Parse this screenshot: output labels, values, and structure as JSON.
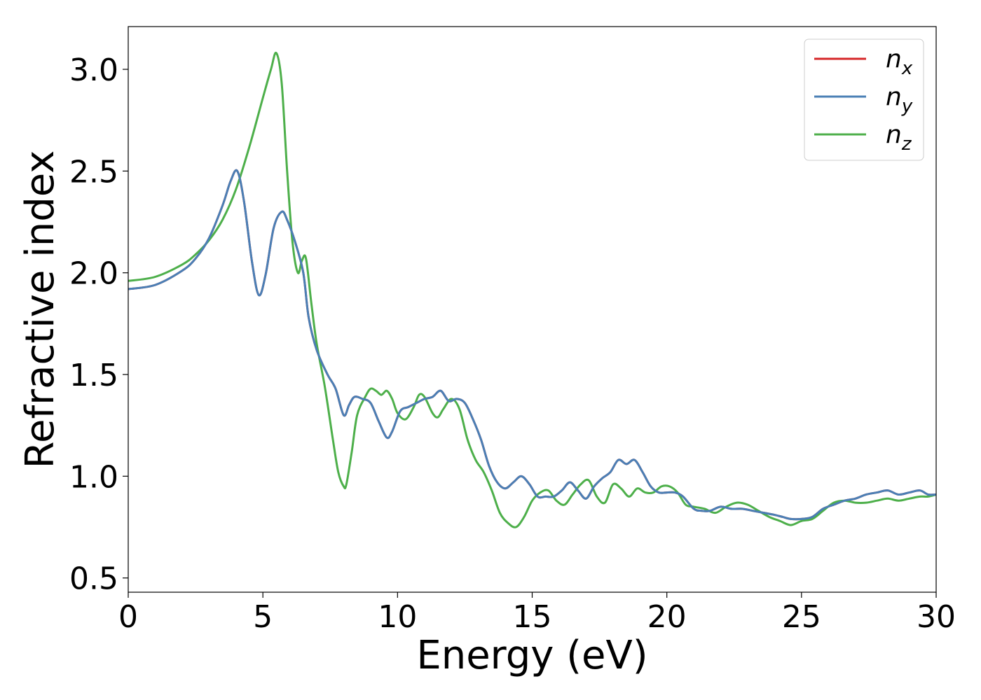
{
  "chart_data": {
    "type": "line",
    "title": "",
    "xlabel": "Energy (eV)",
    "ylabel": "Refractive index",
    "xlim": [
      0,
      30
    ],
    "ylim": [
      0.43,
      3.21
    ],
    "xticks": [
      0,
      5,
      10,
      15,
      20,
      25,
      30
    ],
    "xtick_labels": [
      "0",
      "5",
      "10",
      "15",
      "20",
      "25",
      "30"
    ],
    "yticks": [
      0.5,
      1.0,
      1.5,
      2.0,
      2.5,
      3.0
    ],
    "ytick_labels": [
      "0.5",
      "1.0",
      "1.5",
      "2.0",
      "2.5",
      "3.0"
    ],
    "grid": false,
    "legend_position": "top-right",
    "series": [
      {
        "name": "n_x",
        "label_base": "n",
        "label_sub": "x",
        "color": "#d62728",
        "x": [
          0,
          1,
          2,
          2.5,
          3,
          3.5,
          3.8,
          4.05,
          4.3,
          4.6,
          4.85,
          5.1,
          5.4,
          5.7,
          5.9,
          6.2,
          6.5,
          6.7,
          7.0,
          7.4,
          7.7,
          8.0,
          8.2,
          8.4,
          8.7,
          9.0,
          9.3,
          9.6,
          9.8,
          10.1,
          10.4,
          10.7,
          11.0,
          11.3,
          11.6,
          11.9,
          12.2,
          12.5,
          12.8,
          13.1,
          13.4,
          13.7,
          14.0,
          14.3,
          14.6,
          14.9,
          15.2,
          15.5,
          15.8,
          16.1,
          16.4,
          16.7,
          17.0,
          17.3,
          17.6,
          17.9,
          18.2,
          18.5,
          18.8,
          19.1,
          19.4,
          19.7,
          20.0,
          20.3,
          20.6,
          21.0,
          21.3,
          21.6,
          22.0,
          22.4,
          22.8,
          23.2,
          23.6,
          24.0,
          24.3,
          24.6,
          25.0,
          25.4,
          25.8,
          26.2,
          26.6,
          27.0,
          27.4,
          27.8,
          28.2,
          28.6,
          29.0,
          29.4,
          29.7,
          30.0
        ],
        "y": [
          1.92,
          1.94,
          2.01,
          2.07,
          2.17,
          2.33,
          2.45,
          2.5,
          2.35,
          2.05,
          1.89,
          1.99,
          2.22,
          2.3,
          2.26,
          2.15,
          2.0,
          1.78,
          1.62,
          1.5,
          1.43,
          1.3,
          1.35,
          1.39,
          1.38,
          1.36,
          1.27,
          1.19,
          1.22,
          1.32,
          1.34,
          1.36,
          1.38,
          1.39,
          1.42,
          1.37,
          1.38,
          1.36,
          1.28,
          1.18,
          1.05,
          0.97,
          0.94,
          0.97,
          1.0,
          0.96,
          0.9,
          0.9,
          0.9,
          0.93,
          0.97,
          0.93,
          0.89,
          0.95,
          0.99,
          1.02,
          1.08,
          1.06,
          1.08,
          1.02,
          0.95,
          0.92,
          0.92,
          0.92,
          0.9,
          0.84,
          0.83,
          0.83,
          0.85,
          0.84,
          0.84,
          0.83,
          0.82,
          0.81,
          0.8,
          0.79,
          0.79,
          0.8,
          0.84,
          0.86,
          0.88,
          0.89,
          0.91,
          0.92,
          0.93,
          0.91,
          0.92,
          0.93,
          0.91,
          0.91
        ]
      },
      {
        "name": "n_y",
        "label_base": "n",
        "label_sub": "y",
        "color": "#4a7fb5",
        "x": [
          0,
          1,
          2,
          2.5,
          3,
          3.5,
          3.8,
          4.05,
          4.3,
          4.6,
          4.85,
          5.1,
          5.4,
          5.7,
          5.9,
          6.2,
          6.5,
          6.7,
          7.0,
          7.4,
          7.7,
          8.0,
          8.2,
          8.4,
          8.7,
          9.0,
          9.3,
          9.6,
          9.8,
          10.1,
          10.4,
          10.7,
          11.0,
          11.3,
          11.6,
          11.9,
          12.2,
          12.5,
          12.8,
          13.1,
          13.4,
          13.7,
          14.0,
          14.3,
          14.6,
          14.9,
          15.2,
          15.5,
          15.8,
          16.1,
          16.4,
          16.7,
          17.0,
          17.3,
          17.6,
          17.9,
          18.2,
          18.5,
          18.8,
          19.1,
          19.4,
          19.7,
          20.0,
          20.3,
          20.6,
          21.0,
          21.3,
          21.6,
          22.0,
          22.4,
          22.8,
          23.2,
          23.6,
          24.0,
          24.3,
          24.6,
          25.0,
          25.4,
          25.8,
          26.2,
          26.6,
          27.0,
          27.4,
          27.8,
          28.2,
          28.6,
          29.0,
          29.4,
          29.7,
          30.0
        ],
        "y": [
          1.92,
          1.94,
          2.01,
          2.07,
          2.17,
          2.33,
          2.45,
          2.5,
          2.35,
          2.05,
          1.89,
          1.99,
          2.22,
          2.3,
          2.26,
          2.15,
          2.0,
          1.78,
          1.62,
          1.5,
          1.43,
          1.3,
          1.35,
          1.39,
          1.38,
          1.36,
          1.27,
          1.19,
          1.22,
          1.32,
          1.34,
          1.36,
          1.38,
          1.39,
          1.42,
          1.37,
          1.38,
          1.36,
          1.28,
          1.18,
          1.05,
          0.97,
          0.94,
          0.97,
          1.0,
          0.96,
          0.9,
          0.9,
          0.9,
          0.93,
          0.97,
          0.93,
          0.89,
          0.95,
          0.99,
          1.02,
          1.08,
          1.06,
          1.08,
          1.02,
          0.95,
          0.92,
          0.92,
          0.92,
          0.9,
          0.84,
          0.83,
          0.83,
          0.85,
          0.84,
          0.84,
          0.83,
          0.82,
          0.81,
          0.8,
          0.79,
          0.79,
          0.8,
          0.84,
          0.86,
          0.88,
          0.89,
          0.91,
          0.92,
          0.93,
          0.91,
          0.92,
          0.93,
          0.91,
          0.91
        ]
      },
      {
        "name": "n_z",
        "label_base": "n",
        "label_sub": "z",
        "color": "#4daf4a",
        "x": [
          0,
          1,
          2,
          2.5,
          3,
          3.5,
          4.0,
          4.5,
          5.0,
          5.3,
          5.5,
          5.7,
          5.9,
          6.1,
          6.3,
          6.45,
          6.6,
          6.8,
          7.0,
          7.3,
          7.6,
          7.8,
          8.0,
          8.1,
          8.3,
          8.5,
          8.8,
          9.0,
          9.2,
          9.4,
          9.6,
          9.8,
          10.0,
          10.3,
          10.6,
          10.8,
          11.0,
          11.3,
          11.5,
          11.7,
          12.0,
          12.3,
          12.6,
          12.9,
          13.2,
          13.5,
          13.8,
          14.1,
          14.4,
          14.7,
          15.0,
          15.3,
          15.6,
          15.9,
          16.2,
          16.5,
          16.8,
          17.1,
          17.4,
          17.7,
          18.0,
          18.3,
          18.6,
          18.9,
          19.2,
          19.5,
          19.8,
          20.1,
          20.4,
          20.7,
          21.0,
          21.4,
          21.8,
          22.2,
          22.6,
          23.0,
          23.4,
          23.8,
          24.2,
          24.6,
          25.0,
          25.4,
          25.8,
          26.2,
          26.6,
          27.0,
          27.4,
          27.8,
          28.2,
          28.6,
          29.0,
          29.4,
          29.7,
          30.0
        ],
        "y": [
          1.96,
          1.98,
          2.04,
          2.09,
          2.16,
          2.26,
          2.41,
          2.62,
          2.86,
          3.0,
          3.08,
          2.93,
          2.5,
          2.15,
          2.0,
          2.06,
          2.07,
          1.85,
          1.65,
          1.44,
          1.18,
          1.02,
          0.95,
          0.96,
          1.12,
          1.3,
          1.39,
          1.43,
          1.42,
          1.4,
          1.42,
          1.38,
          1.31,
          1.28,
          1.34,
          1.4,
          1.39,
          1.31,
          1.29,
          1.33,
          1.38,
          1.33,
          1.18,
          1.08,
          1.02,
          0.93,
          0.82,
          0.77,
          0.75,
          0.8,
          0.88,
          0.92,
          0.93,
          0.88,
          0.86,
          0.91,
          0.96,
          0.98,
          0.9,
          0.87,
          0.96,
          0.94,
          0.9,
          0.94,
          0.92,
          0.92,
          0.95,
          0.95,
          0.92,
          0.86,
          0.85,
          0.84,
          0.82,
          0.85,
          0.87,
          0.86,
          0.83,
          0.8,
          0.78,
          0.76,
          0.78,
          0.79,
          0.83,
          0.87,
          0.88,
          0.87,
          0.87,
          0.88,
          0.89,
          0.88,
          0.89,
          0.9,
          0.9,
          0.91
        ]
      }
    ]
  }
}
